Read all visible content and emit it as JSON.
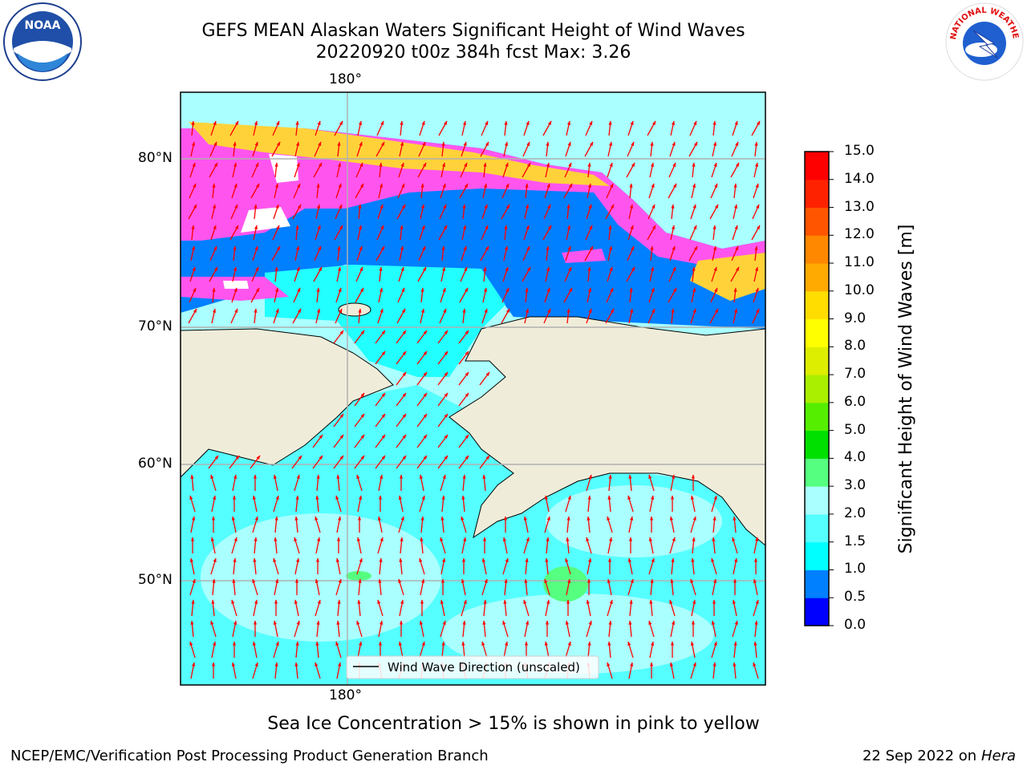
{
  "title": {
    "line1": "GEFS MEAN Alaskan Waters Significant Height of Wind Waves",
    "line2": "20220920 t00z 384h fcst   Max: 3.26"
  },
  "map": {
    "top_label": "180°",
    "bottom_label": "180°",
    "lat_labels": [
      "80°N",
      "70°N",
      "60°N",
      "50°N"
    ],
    "legend_label": "Wind Wave Direction (unscaled)",
    "colors": {
      "land": "#efedda",
      "ice_pink": "#ff55ee",
      "ice_yellow": "#ffd23a",
      "arrow": "#ff0000"
    }
  },
  "colorbar": {
    "label": "Significant Height of Wind Waves [m]",
    "ticks": [
      "0.0",
      "0.5",
      "1.0",
      "1.5",
      "2.0",
      "3.0",
      "4.0",
      "5.0",
      "6.0",
      "7.0",
      "8.0",
      "9.0",
      "10.0",
      "11.0",
      "12.0",
      "13.0",
      "14.0",
      "15.0"
    ],
    "colors": [
      "#0000ff",
      "#007fff",
      "#00ffff",
      "#55ffff",
      "#aaffff",
      "#55ff7f",
      "#00e000",
      "#55ee00",
      "#aaee00",
      "#ddee00",
      "#ffff00",
      "#ffdd00",
      "#ffaa00",
      "#ff8800",
      "#ff5500",
      "#ff2200",
      "#ff0000"
    ]
  },
  "caption": "Sea Ice Concentration > 15% is shown in pink to yellow",
  "footer": {
    "left": "NCEP/EMC/Verification Post Processing Product Generation Branch",
    "date": "22 Sep 2022 on",
    "host": "Hera"
  },
  "logos": {
    "noaa_text": "NOAA",
    "nws_text": "NATIONAL WEATHER SERVICE"
  }
}
